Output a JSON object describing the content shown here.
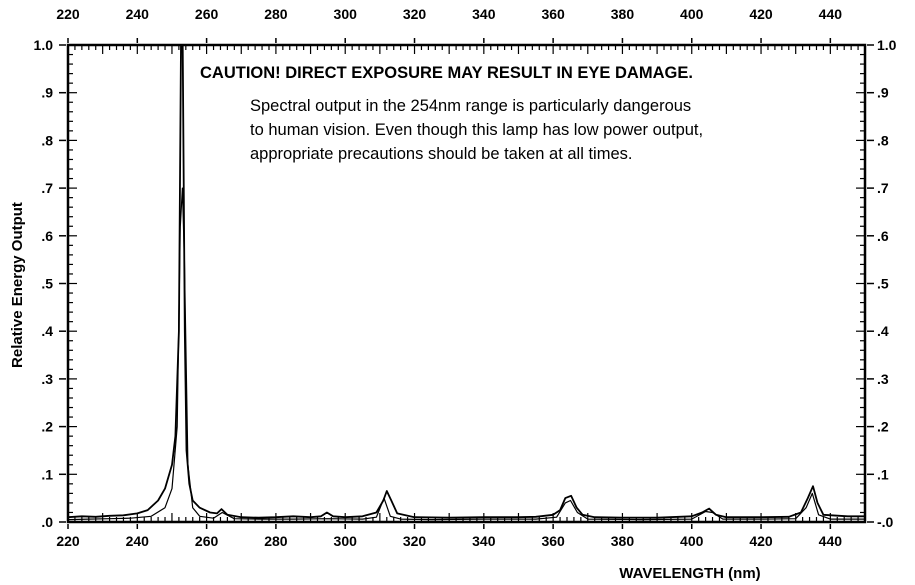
{
  "chart_data": {
    "type": "line",
    "title": "",
    "xlabel": "WAVELENGTH (nm)",
    "ylabel": "Relative Energy Output",
    "xlim": [
      220,
      450
    ],
    "ylim": [
      0,
      1.0
    ],
    "x_ticks": [
      220,
      240,
      260,
      280,
      300,
      320,
      340,
      360,
      380,
      400,
      420,
      440
    ],
    "y_ticks_left": [
      {
        "value": 1.0,
        "label": "1.0"
      },
      {
        "value": 0.9,
        "label": ".9"
      },
      {
        "value": 0.8,
        "label": ".8"
      },
      {
        "value": 0.7,
        "label": ".7"
      },
      {
        "value": 0.6,
        "label": ".6"
      },
      {
        "value": 0.5,
        "label": ".5"
      },
      {
        "value": 0.4,
        "label": ".4"
      },
      {
        "value": 0.3,
        "label": ".3"
      },
      {
        "value": 0.2,
        "label": ".2"
      },
      {
        "value": 0.1,
        "label": ".1"
      },
      {
        "value": 0.0,
        "label": ".0"
      }
    ],
    "y_ticks_right": [
      {
        "value": 1.0,
        "label": "1.0"
      },
      {
        "value": 0.9,
        "label": ".9"
      },
      {
        "value": 0.8,
        "label": ".8"
      },
      {
        "value": 0.7,
        "label": ".7"
      },
      {
        "value": 0.6,
        "label": ".6"
      },
      {
        "value": 0.5,
        "label": ".5"
      },
      {
        "value": 0.4,
        "label": ".4"
      },
      {
        "value": 0.3,
        "label": ".3"
      },
      {
        "value": 0.2,
        "label": ".2"
      },
      {
        "value": 0.1,
        "label": ".1"
      },
      {
        "value": 0.0,
        "label": "-.0"
      }
    ],
    "grid": false,
    "series": [
      {
        "x": [
          220,
          224,
          228,
          232,
          236,
          240,
          243,
          246,
          248,
          250,
          251,
          252,
          252.6,
          253.1,
          253.7,
          254.2,
          255,
          256,
          258,
          261,
          263,
          264.3,
          266,
          270,
          275,
          280,
          285,
          290,
          293,
          294.7,
          296.5,
          300,
          305,
          309,
          311,
          312,
          313.3,
          315,
          320,
          330,
          340,
          350,
          355,
          360,
          362,
          363.5,
          365.2,
          366.8,
          368.5,
          372,
          380,
          390,
          400,
          403,
          405,
          407,
          410,
          420,
          428,
          431.5,
          433.5,
          435,
          436.3,
          438,
          445,
          450
        ],
        "y": [
          0.01,
          0.012,
          0.011,
          0.013,
          0.014,
          0.018,
          0.025,
          0.045,
          0.07,
          0.12,
          0.18,
          0.4,
          1.0,
          1.0,
          0.4,
          0.15,
          0.08,
          0.045,
          0.03,
          0.02,
          0.018,
          0.027,
          0.015,
          0.01,
          0.009,
          0.01,
          0.012,
          0.01,
          0.012,
          0.02,
          0.012,
          0.01,
          0.012,
          0.02,
          0.045,
          0.065,
          0.045,
          0.018,
          0.01,
          0.009,
          0.01,
          0.01,
          0.011,
          0.015,
          0.025,
          0.05,
          0.055,
          0.03,
          0.015,
          0.01,
          0.009,
          0.009,
          0.012,
          0.02,
          0.028,
          0.015,
          0.01,
          0.01,
          0.011,
          0.02,
          0.05,
          0.075,
          0.04,
          0.015,
          0.012,
          0.012
        ]
      },
      {
        "x": [
          220,
          226,
          232,
          238,
          244,
          248,
          250,
          251.5,
          252.4,
          253,
          253.6,
          254.6,
          256,
          258,
          262,
          264.5,
          268,
          275,
          285,
          295,
          305,
          309,
          311.2,
          313,
          316,
          325,
          340,
          355,
          361,
          363.5,
          365,
          367,
          370,
          385,
          400,
          404,
          406,
          409,
          420,
          430,
          433,
          434.8,
          436.6,
          440,
          450
        ],
        "y": [
          0.005,
          0.006,
          0.007,
          0.008,
          0.012,
          0.03,
          0.07,
          0.2,
          0.62,
          0.7,
          0.55,
          0.12,
          0.03,
          0.012,
          0.008,
          0.02,
          0.007,
          0.006,
          0.006,
          0.007,
          0.006,
          0.01,
          0.05,
          0.012,
          0.006,
          0.005,
          0.006,
          0.006,
          0.01,
          0.04,
          0.045,
          0.02,
          0.006,
          0.005,
          0.006,
          0.022,
          0.02,
          0.006,
          0.006,
          0.007,
          0.03,
          0.06,
          0.015,
          0.006,
          0.006
        ]
      }
    ]
  },
  "annotations": {
    "caution": "CAUTION!  DIRECT EXPOSURE MAY RESULT IN EYE DAMAGE.",
    "note_lines": [
      "Spectral output in the 254nm range is particularly dangerous",
      "to human vision.  Even though this lamp has low power output,",
      "appropriate precautions should be taken at all times."
    ]
  }
}
